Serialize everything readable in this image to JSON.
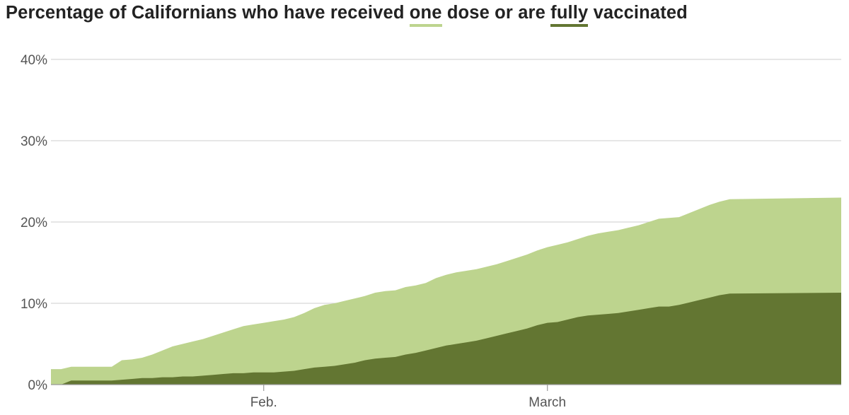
{
  "title": {
    "prefix": "Percentage of Californians who have received ",
    "one_word": "one",
    "middle": " dose or are ",
    "fully_word": "fully",
    "suffix": " vaccinated"
  },
  "colors": {
    "one_dose": "#bdd48e",
    "fully": "#637632",
    "grid": "#d6d6d6",
    "axis": "#999999",
    "text": "#555555"
  },
  "chart_data": {
    "type": "area",
    "x_start": "2021-01-11",
    "x_end": "2021-03-30",
    "xlim": [
      "2021-01-11",
      "2021-03-30"
    ],
    "ylim": [
      0,
      40
    ],
    "y_ticks": [
      {
        "value": 0,
        "label": "0%"
      },
      {
        "value": 10,
        "label": "10%"
      },
      {
        "value": 20,
        "label": "20%"
      },
      {
        "value": 30,
        "label": "30%"
      },
      {
        "value": 40,
        "label": "40%"
      }
    ],
    "x_ticks": [
      {
        "date": "2021-02-01",
        "label": "Feb."
      },
      {
        "date": "2021-03-01",
        "label": "March"
      }
    ],
    "grid": true,
    "series": [
      {
        "name": "one",
        "color": "#bdd48e",
        "points": [
          [
            "2021-01-11",
            1.9
          ],
          [
            "2021-01-12",
            1.9
          ],
          [
            "2021-01-13",
            2.2
          ],
          [
            "2021-01-14",
            2.2
          ],
          [
            "2021-01-15",
            2.2
          ],
          [
            "2021-01-16",
            2.2
          ],
          [
            "2021-01-17",
            2.2
          ],
          [
            "2021-01-18",
            3.0
          ],
          [
            "2021-01-19",
            3.1
          ],
          [
            "2021-01-20",
            3.3
          ],
          [
            "2021-01-21",
            3.7
          ],
          [
            "2021-01-22",
            4.2
          ],
          [
            "2021-01-23",
            4.7
          ],
          [
            "2021-01-24",
            5.0
          ],
          [
            "2021-01-25",
            5.3
          ],
          [
            "2021-01-26",
            5.6
          ],
          [
            "2021-01-27",
            6.0
          ],
          [
            "2021-01-28",
            6.4
          ],
          [
            "2021-01-29",
            6.8
          ],
          [
            "2021-01-30",
            7.2
          ],
          [
            "2021-01-31",
            7.4
          ],
          [
            "2021-02-01",
            7.6
          ],
          [
            "2021-02-02",
            7.8
          ],
          [
            "2021-02-03",
            8.0
          ],
          [
            "2021-02-04",
            8.3
          ],
          [
            "2021-02-05",
            8.8
          ],
          [
            "2021-02-06",
            9.4
          ],
          [
            "2021-02-07",
            9.8
          ],
          [
            "2021-02-08",
            10.0
          ],
          [
            "2021-02-09",
            10.3
          ],
          [
            "2021-02-10",
            10.6
          ],
          [
            "2021-02-11",
            10.9
          ],
          [
            "2021-02-12",
            11.3
          ],
          [
            "2021-02-13",
            11.5
          ],
          [
            "2021-02-14",
            11.6
          ],
          [
            "2021-02-15",
            12.0
          ],
          [
            "2021-02-16",
            12.2
          ],
          [
            "2021-02-17",
            12.5
          ],
          [
            "2021-02-18",
            13.1
          ],
          [
            "2021-02-19",
            13.5
          ],
          [
            "2021-02-20",
            13.8
          ],
          [
            "2021-02-21",
            14.0
          ],
          [
            "2021-02-22",
            14.2
          ],
          [
            "2021-02-23",
            14.5
          ],
          [
            "2021-02-24",
            14.8
          ],
          [
            "2021-02-25",
            15.2
          ],
          [
            "2021-02-26",
            15.6
          ],
          [
            "2021-02-27",
            16.0
          ],
          [
            "2021-02-28",
            16.5
          ],
          [
            "2021-03-01",
            16.9
          ],
          [
            "2021-03-02",
            17.2
          ],
          [
            "2021-03-03",
            17.5
          ],
          [
            "2021-03-04",
            17.9
          ],
          [
            "2021-03-05",
            18.3
          ],
          [
            "2021-03-06",
            18.6
          ],
          [
            "2021-03-07",
            18.8
          ],
          [
            "2021-03-08",
            19.0
          ],
          [
            "2021-03-09",
            19.3
          ],
          [
            "2021-03-10",
            19.6
          ],
          [
            "2021-03-11",
            20.0
          ],
          [
            "2021-03-12",
            20.4
          ],
          [
            "2021-03-13",
            20.5
          ],
          [
            "2021-03-14",
            20.6
          ],
          [
            "2021-03-15",
            21.1
          ],
          [
            "2021-03-16",
            21.6
          ],
          [
            "2021-03-17",
            22.1
          ],
          [
            "2021-03-18",
            22.5
          ],
          [
            "2021-03-19",
            22.8
          ],
          [
            "2021-03-30",
            23.0
          ]
        ]
      },
      {
        "name": "fully",
        "color": "#637632",
        "points": [
          [
            "2021-01-11",
            0.0
          ],
          [
            "2021-01-12",
            0.0
          ],
          [
            "2021-01-13",
            0.5
          ],
          [
            "2021-01-14",
            0.5
          ],
          [
            "2021-01-15",
            0.5
          ],
          [
            "2021-01-16",
            0.5
          ],
          [
            "2021-01-17",
            0.5
          ],
          [
            "2021-01-18",
            0.6
          ],
          [
            "2021-01-19",
            0.7
          ],
          [
            "2021-01-20",
            0.8
          ],
          [
            "2021-01-21",
            0.8
          ],
          [
            "2021-01-22",
            0.9
          ],
          [
            "2021-01-23",
            0.9
          ],
          [
            "2021-01-24",
            1.0
          ],
          [
            "2021-01-25",
            1.0
          ],
          [
            "2021-01-26",
            1.1
          ],
          [
            "2021-01-27",
            1.2
          ],
          [
            "2021-01-28",
            1.3
          ],
          [
            "2021-01-29",
            1.4
          ],
          [
            "2021-01-30",
            1.4
          ],
          [
            "2021-01-31",
            1.5
          ],
          [
            "2021-02-01",
            1.5
          ],
          [
            "2021-02-02",
            1.5
          ],
          [
            "2021-02-03",
            1.6
          ],
          [
            "2021-02-04",
            1.7
          ],
          [
            "2021-02-05",
            1.9
          ],
          [
            "2021-02-06",
            2.1
          ],
          [
            "2021-02-07",
            2.2
          ],
          [
            "2021-02-08",
            2.3
          ],
          [
            "2021-02-09",
            2.5
          ],
          [
            "2021-02-10",
            2.7
          ],
          [
            "2021-02-11",
            3.0
          ],
          [
            "2021-02-12",
            3.2
          ],
          [
            "2021-02-13",
            3.3
          ],
          [
            "2021-02-14",
            3.4
          ],
          [
            "2021-02-15",
            3.7
          ],
          [
            "2021-02-16",
            3.9
          ],
          [
            "2021-02-17",
            4.2
          ],
          [
            "2021-02-18",
            4.5
          ],
          [
            "2021-02-19",
            4.8
          ],
          [
            "2021-02-20",
            5.0
          ],
          [
            "2021-02-21",
            5.2
          ],
          [
            "2021-02-22",
            5.4
          ],
          [
            "2021-02-23",
            5.7
          ],
          [
            "2021-02-24",
            6.0
          ],
          [
            "2021-02-25",
            6.3
          ],
          [
            "2021-02-26",
            6.6
          ],
          [
            "2021-02-27",
            6.9
          ],
          [
            "2021-02-28",
            7.3
          ],
          [
            "2021-03-01",
            7.6
          ],
          [
            "2021-03-02",
            7.7
          ],
          [
            "2021-03-03",
            8.0
          ],
          [
            "2021-03-04",
            8.3
          ],
          [
            "2021-03-05",
            8.5
          ],
          [
            "2021-03-06",
            8.6
          ],
          [
            "2021-03-07",
            8.7
          ],
          [
            "2021-03-08",
            8.8
          ],
          [
            "2021-03-09",
            9.0
          ],
          [
            "2021-03-10",
            9.2
          ],
          [
            "2021-03-11",
            9.4
          ],
          [
            "2021-03-12",
            9.6
          ],
          [
            "2021-03-13",
            9.6
          ],
          [
            "2021-03-14",
            9.8
          ],
          [
            "2021-03-15",
            10.1
          ],
          [
            "2021-03-16",
            10.4
          ],
          [
            "2021-03-17",
            10.7
          ],
          [
            "2021-03-18",
            11.0
          ],
          [
            "2021-03-19",
            11.2
          ],
          [
            "2021-03-30",
            11.3
          ]
        ]
      }
    ]
  }
}
